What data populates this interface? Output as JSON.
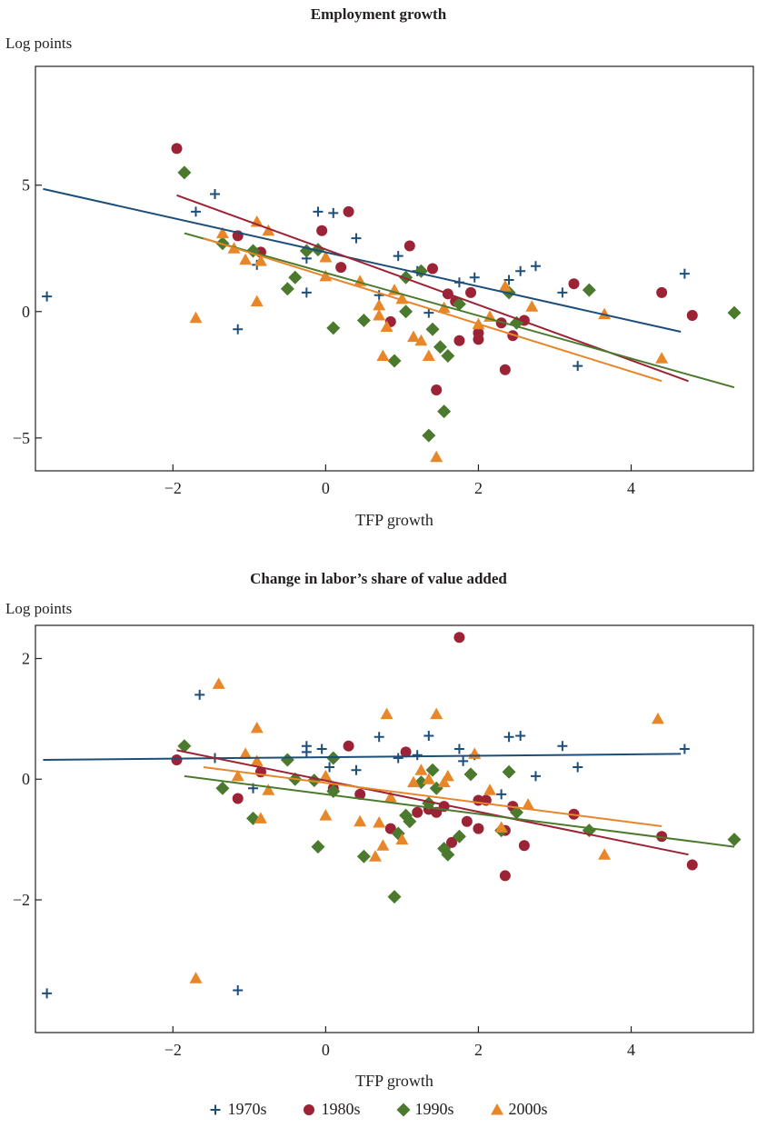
{
  "colors": {
    "1970s": "#1d4e79",
    "1980s": "#9b2335",
    "1990s": "#4b7a2e",
    "2000s": "#e8862a"
  },
  "legend": [
    {
      "name": "1970s",
      "marker": "plus"
    },
    {
      "name": "1980s",
      "marker": "circle"
    },
    {
      "name": "1990s",
      "marker": "diamond"
    },
    {
      "name": "2000s",
      "marker": "triangle"
    }
  ],
  "chart_data": [
    {
      "type": "scatter",
      "title": "Employment growth",
      "ylabel": "Log points",
      "xlabel": "TFP growth",
      "xlim": [
        -3.8,
        5.6
      ],
      "ylim": [
        -6.3,
        9.7
      ],
      "xticks": [
        -2,
        0,
        2,
        4
      ],
      "xtick_labels": [
        "−2",
        "0",
        "2",
        "4"
      ],
      "yticks": [
        -5,
        0,
        5
      ],
      "ytick_labels": [
        "−5",
        "0",
        "5"
      ],
      "series": [
        {
          "name": "1970s",
          "marker": "plus",
          "points": [
            [
              -3.65,
              0.6
            ],
            [
              -1.7,
              3.95
            ],
            [
              -1.45,
              4.65
            ],
            [
              -1.15,
              -0.7
            ],
            [
              -0.9,
              1.85
            ],
            [
              -0.25,
              2.1
            ],
            [
              -0.25,
              0.75
            ],
            [
              -0.1,
              3.95
            ],
            [
              0.1,
              3.9
            ],
            [
              0.4,
              2.9
            ],
            [
              0.7,
              0.65
            ],
            [
              0.95,
              2.2
            ],
            [
              1.2,
              1.6
            ],
            [
              1.35,
              -0.05
            ],
            [
              1.75,
              1.15
            ],
            [
              1.95,
              1.35
            ],
            [
              2.4,
              1.25
            ],
            [
              2.55,
              1.6
            ],
            [
              2.75,
              1.8
            ],
            [
              3.1,
              0.75
            ],
            [
              3.3,
              -2.15
            ],
            [
              4.7,
              1.5
            ]
          ],
          "trend": [
            [
              -3.7,
              4.85
            ],
            [
              4.65,
              -0.8
            ]
          ]
        },
        {
          "name": "1980s",
          "marker": "circle",
          "points": [
            [
              -1.95,
              6.45
            ],
            [
              -1.15,
              3.0
            ],
            [
              -0.85,
              2.35
            ],
            [
              -0.05,
              3.2
            ],
            [
              0.2,
              1.75
            ],
            [
              0.3,
              3.95
            ],
            [
              0.85,
              -0.4
            ],
            [
              1.1,
              2.6
            ],
            [
              1.4,
              1.7
            ],
            [
              1.45,
              -3.1
            ],
            [
              1.6,
              0.7
            ],
            [
              1.7,
              0.4
            ],
            [
              1.75,
              -1.15
            ],
            [
              1.9,
              0.75
            ],
            [
              2.0,
              -0.85
            ],
            [
              2.0,
              -1.1
            ],
            [
              2.3,
              -0.45
            ],
            [
              2.35,
              -2.3
            ],
            [
              2.45,
              -0.95
            ],
            [
              2.6,
              -0.35
            ],
            [
              3.25,
              1.1
            ],
            [
              4.4,
              0.75
            ],
            [
              4.8,
              -0.15
            ]
          ],
          "trend": [
            [
              -1.95,
              4.6
            ],
            [
              4.75,
              -2.75
            ]
          ]
        },
        {
          "name": "1990s",
          "marker": "diamond",
          "points": [
            [
              -1.85,
              5.5
            ],
            [
              -1.35,
              2.7
            ],
            [
              -0.95,
              2.4
            ],
            [
              -0.5,
              0.9
            ],
            [
              -0.4,
              1.35
            ],
            [
              -0.25,
              2.4
            ],
            [
              -0.1,
              2.45
            ],
            [
              0.1,
              -0.65
            ],
            [
              0.5,
              -0.35
            ],
            [
              0.9,
              -1.95
            ],
            [
              1.05,
              1.35
            ],
            [
              1.05,
              0.0
            ],
            [
              1.25,
              1.6
            ],
            [
              1.35,
              -4.9
            ],
            [
              1.4,
              -0.7
            ],
            [
              1.5,
              -1.4
            ],
            [
              1.55,
              -3.95
            ],
            [
              1.6,
              -1.75
            ],
            [
              1.75,
              0.3
            ],
            [
              2.4,
              0.75
            ],
            [
              2.5,
              -0.45
            ],
            [
              3.45,
              0.85
            ],
            [
              5.35,
              -0.05
            ]
          ],
          "trend": [
            [
              -1.85,
              3.1
            ],
            [
              5.35,
              -3.0
            ]
          ]
        },
        {
          "name": "2000s",
          "marker": "triangle",
          "points": [
            [
              -1.7,
              -0.25
            ],
            [
              -1.35,
              3.1
            ],
            [
              -1.2,
              2.5
            ],
            [
              -1.05,
              2.05
            ],
            [
              -0.9,
              3.55
            ],
            [
              -0.9,
              0.4
            ],
            [
              -0.85,
              2.0
            ],
            [
              -0.75,
              3.2
            ],
            [
              0.0,
              2.15
            ],
            [
              0.0,
              1.4
            ],
            [
              0.45,
              1.2
            ],
            [
              0.7,
              0.25
            ],
            [
              0.7,
              -0.15
            ],
            [
              0.75,
              -1.75
            ],
            [
              0.8,
              -0.6
            ],
            [
              0.9,
              0.85
            ],
            [
              1.0,
              0.5
            ],
            [
              1.15,
              -1.0
            ],
            [
              1.25,
              -1.15
            ],
            [
              1.35,
              -1.75
            ],
            [
              1.45,
              -5.75
            ],
            [
              1.55,
              0.15
            ],
            [
              2.0,
              -0.5
            ],
            [
              2.15,
              -0.2
            ],
            [
              2.35,
              1.0
            ],
            [
              2.7,
              0.2
            ],
            [
              3.65,
              -0.1
            ],
            [
              4.4,
              -1.85
            ]
          ],
          "trend": [
            [
              -1.6,
              2.9
            ],
            [
              4.4,
              -2.75
            ]
          ]
        }
      ]
    },
    {
      "type": "scatter",
      "title": "Change in labor’s share of value added",
      "ylabel": "Log points",
      "xlabel": "TFP growth",
      "xlim": [
        -3.8,
        5.6
      ],
      "ylim": [
        -4.2,
        2.55
      ],
      "xticks": [
        -2,
        0,
        2,
        4
      ],
      "xtick_labels": [
        "−2",
        "0",
        "2",
        "4"
      ],
      "yticks": [
        -2,
        0,
        2
      ],
      "ytick_labels": [
        "−2",
        "0",
        "2"
      ],
      "series": [
        {
          "name": "1970s",
          "marker": "plus",
          "points": [
            [
              -3.65,
              -3.55
            ],
            [
              -1.65,
              1.4
            ],
            [
              -1.45,
              0.35
            ],
            [
              -1.15,
              -3.5
            ],
            [
              -0.95,
              -0.15
            ],
            [
              -0.25,
              0.55
            ],
            [
              -0.25,
              0.45
            ],
            [
              -0.05,
              0.5
            ],
            [
              0.05,
              0.2
            ],
            [
              0.4,
              0.15
            ],
            [
              0.7,
              0.7
            ],
            [
              0.95,
              0.35
            ],
            [
              1.2,
              0.4
            ],
            [
              1.35,
              0.72
            ],
            [
              1.75,
              0.5
            ],
            [
              1.8,
              0.3
            ],
            [
              2.4,
              0.7
            ],
            [
              2.55,
              0.72
            ],
            [
              2.75,
              0.05
            ],
            [
              3.1,
              0.55
            ],
            [
              3.3,
              0.2
            ],
            [
              4.7,
              0.5
            ],
            [
              1.95,
              0.4
            ],
            [
              2.3,
              -0.25
            ]
          ],
          "trend": [
            [
              -3.7,
              0.32
            ],
            [
              4.65,
              0.42
            ]
          ]
        },
        {
          "name": "1980s",
          "marker": "circle",
          "points": [
            [
              -1.95,
              0.32
            ],
            [
              -1.15,
              -0.32
            ],
            [
              -0.85,
              0.12
            ],
            [
              0.1,
              -0.15
            ],
            [
              0.3,
              0.55
            ],
            [
              0.45,
              -0.25
            ],
            [
              0.85,
              -0.82
            ],
            [
              1.05,
              0.45
            ],
            [
              1.2,
              -0.55
            ],
            [
              1.35,
              -0.5
            ],
            [
              1.45,
              -0.55
            ],
            [
              1.55,
              -0.45
            ],
            [
              1.65,
              -1.05
            ],
            [
              1.75,
              2.35
            ],
            [
              1.85,
              -0.7
            ],
            [
              2.0,
              -0.35
            ],
            [
              2.0,
              -0.82
            ],
            [
              2.1,
              -0.35
            ],
            [
              2.35,
              -0.85
            ],
            [
              2.35,
              -1.6
            ],
            [
              2.45,
              -0.45
            ],
            [
              2.6,
              -1.1
            ],
            [
              3.25,
              -0.58
            ],
            [
              4.4,
              -0.95
            ],
            [
              4.8,
              -1.42
            ]
          ],
          "trend": [
            [
              -1.95,
              0.48
            ],
            [
              4.75,
              -1.25
            ]
          ]
        },
        {
          "name": "1990s",
          "marker": "diamond",
          "points": [
            [
              -1.85,
              0.55
            ],
            [
              -1.35,
              -0.15
            ],
            [
              -0.95,
              -0.65
            ],
            [
              -0.5,
              0.32
            ],
            [
              -0.4,
              0.0
            ],
            [
              -0.15,
              -0.02
            ],
            [
              -0.1,
              -1.12
            ],
            [
              0.1,
              -0.2
            ],
            [
              0.1,
              0.35
            ],
            [
              0.5,
              -1.28
            ],
            [
              0.9,
              -1.95
            ],
            [
              0.95,
              -0.9
            ],
            [
              1.05,
              -0.6
            ],
            [
              1.1,
              -0.7
            ],
            [
              1.25,
              -0.05
            ],
            [
              1.35,
              -0.4
            ],
            [
              1.4,
              0.15
            ],
            [
              1.45,
              -0.15
            ],
            [
              1.55,
              -1.15
            ],
            [
              1.6,
              -1.25
            ],
            [
              1.75,
              -0.95
            ],
            [
              1.9,
              0.08
            ],
            [
              2.3,
              -0.85
            ],
            [
              2.4,
              0.12
            ],
            [
              2.5,
              -0.55
            ],
            [
              3.45,
              -0.85
            ],
            [
              5.35,
              -1.0
            ]
          ],
          "trend": [
            [
              -1.85,
              0.05
            ],
            [
              5.35,
              -1.12
            ]
          ]
        },
        {
          "name": "2000s",
          "marker": "triangle",
          "points": [
            [
              -1.7,
              -3.3
            ],
            [
              -1.4,
              1.58
            ],
            [
              -1.15,
              0.05
            ],
            [
              -1.05,
              0.42
            ],
            [
              -0.9,
              0.85
            ],
            [
              -0.9,
              0.3
            ],
            [
              -0.85,
              -0.65
            ],
            [
              -0.75,
              -0.18
            ],
            [
              0.0,
              0.05
            ],
            [
              0.0,
              -0.6
            ],
            [
              0.45,
              -0.7
            ],
            [
              0.65,
              -1.28
            ],
            [
              0.7,
              -0.72
            ],
            [
              0.75,
              -1.1
            ],
            [
              0.8,
              1.08
            ],
            [
              0.85,
              -0.3
            ],
            [
              1.0,
              -1.0
            ],
            [
              1.15,
              -0.05
            ],
            [
              1.25,
              0.15
            ],
            [
              1.35,
              0.0
            ],
            [
              1.45,
              1.08
            ],
            [
              1.55,
              -0.05
            ],
            [
              1.6,
              0.05
            ],
            [
              1.95,
              0.42
            ],
            [
              2.15,
              -0.18
            ],
            [
              2.3,
              -0.8
            ],
            [
              2.65,
              -0.42
            ],
            [
              3.65,
              -1.25
            ],
            [
              4.35,
              1.0
            ]
          ],
          "trend": [
            [
              -1.6,
              0.2
            ],
            [
              4.4,
              -0.78
            ]
          ]
        }
      ]
    }
  ]
}
